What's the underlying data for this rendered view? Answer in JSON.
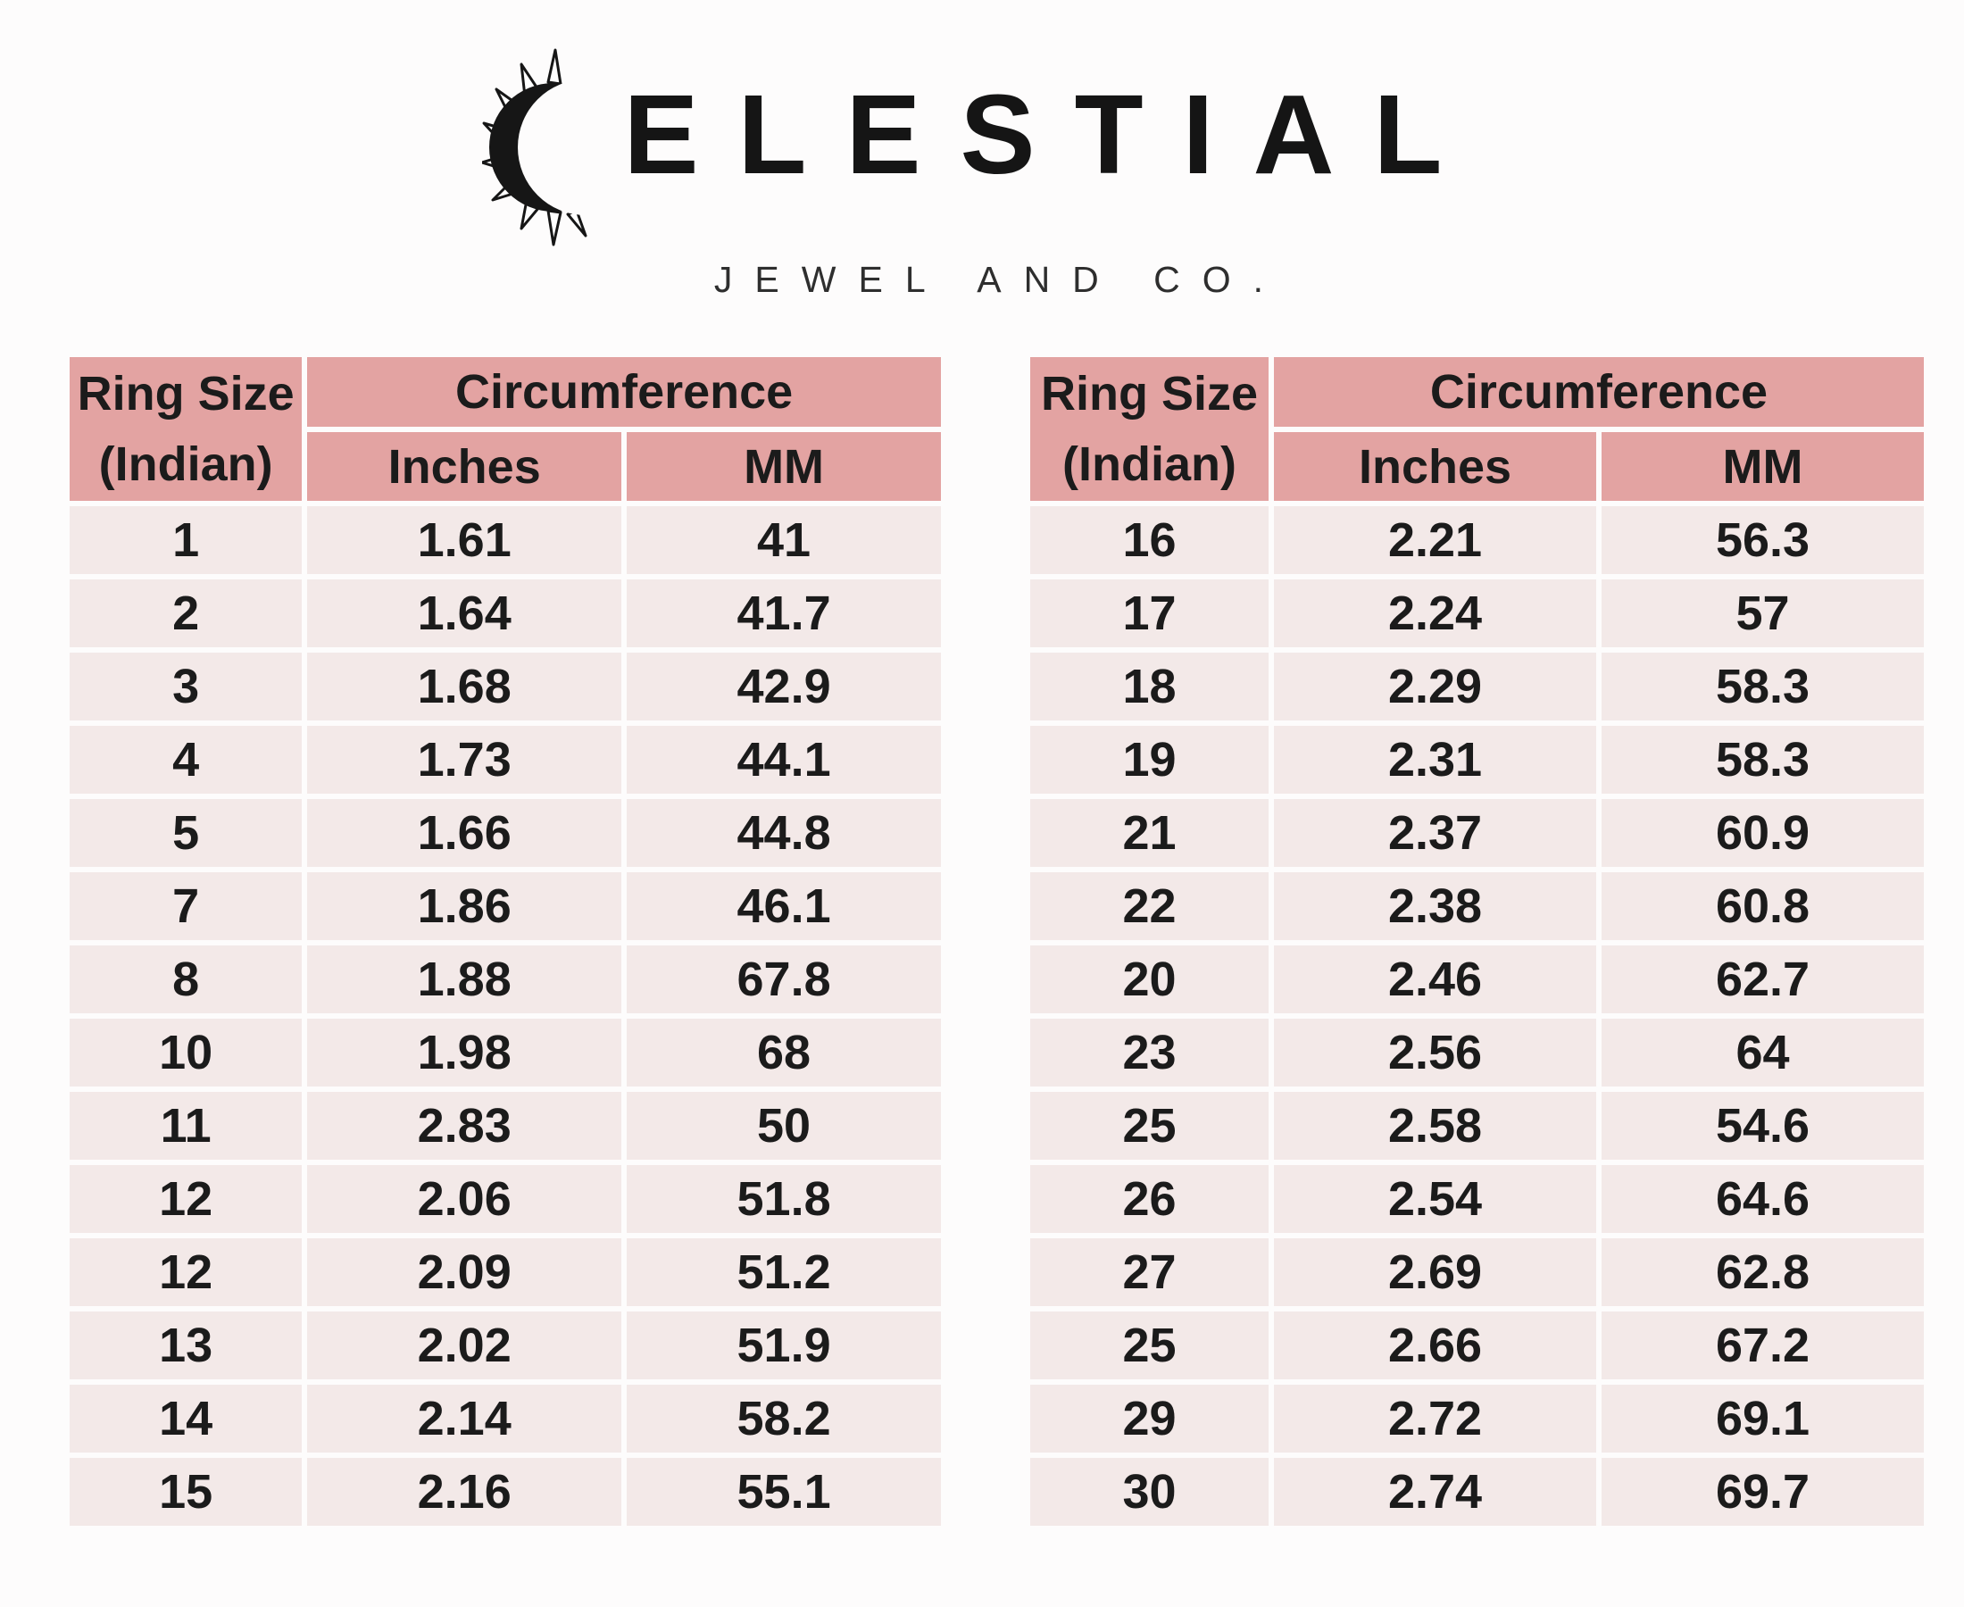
{
  "logo": {
    "brand_full": "CELESTIAL",
    "brand_text": "ELESTIAL",
    "mark": "sun-crescent",
    "tagline": "JEWEL AND CO."
  },
  "colors": {
    "header_bg": "#e3a3a2",
    "row_bg": "#f3e9e8",
    "text_dark": "#1b1b1b",
    "page_bg": "#fdfcfc"
  },
  "tables": [
    {
      "id": "left",
      "headers": {
        "col1_line1": "Ring Size",
        "col1_line2": "(Indian)",
        "group": "Circumference",
        "sub": [
          "Inches",
          "MM"
        ]
      },
      "rows": [
        [
          "1",
          "1.61",
          "41"
        ],
        [
          "2",
          "1.64",
          "41.7"
        ],
        [
          "3",
          "1.68",
          "42.9"
        ],
        [
          "4",
          "1.73",
          "44.1"
        ],
        [
          "5",
          "1.66",
          "44.8"
        ],
        [
          "7",
          "1.86",
          "46.1"
        ],
        [
          "8",
          "1.88",
          "67.8"
        ],
        [
          "10",
          "1.98",
          "68"
        ],
        [
          "11",
          "2.83",
          "50"
        ],
        [
          "12",
          "2.06",
          "51.8"
        ],
        [
          "12",
          "2.09",
          "51.2"
        ],
        [
          "13",
          "2.02",
          "51.9"
        ],
        [
          "14",
          "2.14",
          "58.2"
        ],
        [
          "15",
          "2.16",
          "55.1"
        ]
      ]
    },
    {
      "id": "right",
      "headers": {
        "col1_line1": "Ring Size",
        "col1_line2": "(Indian)",
        "group": "Circumference",
        "sub": [
          "Inches",
          "MM"
        ]
      },
      "rows": [
        [
          "16",
          "2.21",
          "56.3"
        ],
        [
          "17",
          "2.24",
          "57"
        ],
        [
          "18",
          "2.29",
          "58.3"
        ],
        [
          "19",
          "2.31",
          "58.3"
        ],
        [
          "21",
          "2.37",
          "60.9"
        ],
        [
          "22",
          "2.38",
          "60.8"
        ],
        [
          "20",
          "2.46",
          "62.7"
        ],
        [
          "23",
          "2.56",
          "64"
        ],
        [
          "25",
          "2.58",
          "54.6"
        ],
        [
          "26",
          "2.54",
          "64.6"
        ],
        [
          "27",
          "2.69",
          "62.8"
        ],
        [
          "25",
          "2.66",
          "67.2"
        ],
        [
          "29",
          "2.72",
          "69.1"
        ],
        [
          "30",
          "2.74",
          "69.7"
        ]
      ]
    }
  ]
}
